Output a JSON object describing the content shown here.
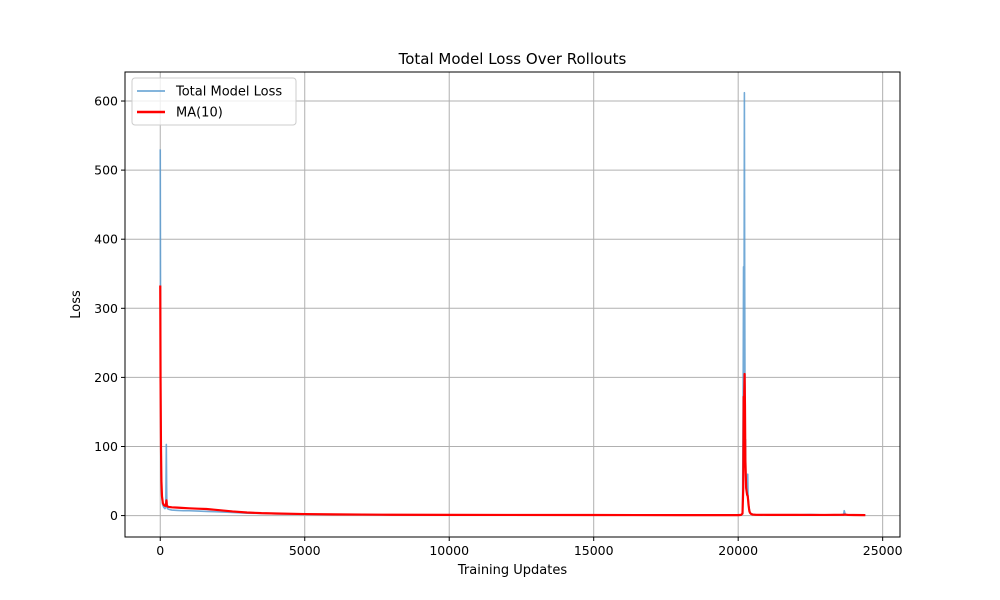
{
  "chart_data": {
    "type": "line",
    "title": "Total Model Loss Over Rollouts",
    "xlabel": "Training Updates",
    "ylabel": "Loss",
    "xlim": [
      -1220,
      25600
    ],
    "ylim": [
      -31,
      642
    ],
    "xticks": [
      0,
      5000,
      10000,
      15000,
      20000,
      25000
    ],
    "xtick_labels": [
      "0",
      "5000",
      "10000",
      "15000",
      "20000",
      "25000"
    ],
    "yticks": [
      0,
      100,
      200,
      300,
      400,
      500,
      600
    ],
    "ytick_labels": [
      "0",
      "100",
      "200",
      "300",
      "400",
      "500",
      "600"
    ],
    "grid": true,
    "legend_position": "top-left",
    "series": [
      {
        "name": "Total Model Loss",
        "color": "#5b9bd0",
        "x": [
          0,
          8,
          18,
          30,
          50,
          80,
          120,
          160,
          190,
          200,
          210,
          222,
          230,
          250,
          300,
          400,
          600,
          800,
          1000,
          1300,
          1600,
          2000,
          2500,
          3000,
          3500,
          4000,
          5000,
          6000,
          7000,
          8000,
          10000,
          12000,
          15000,
          18000,
          20000,
          20100,
          20150,
          20170,
          20185,
          20195,
          20205,
          20215,
          20225,
          20235,
          20245,
          20255,
          20265,
          20275,
          20290,
          20310,
          20330,
          20345,
          20360,
          20375,
          20390,
          20410,
          20440,
          20500,
          20600,
          21000,
          21500,
          22000,
          22500,
          23000,
          23500,
          23650,
          23670,
          23690,
          23710,
          23800,
          24000,
          24200,
          24400
        ],
        "y": [
          530,
          350,
          120,
          60,
          30,
          16,
          12,
          10,
          12,
          50,
          103,
          40,
          14,
          10,
          9,
          8,
          7.5,
          7,
          7,
          6.5,
          6,
          5.5,
          4.5,
          3.5,
          3,
          2.5,
          2,
          1.6,
          1.3,
          1.1,
          0.9,
          0.8,
          0.7,
          0.6,
          0.6,
          0.8,
          2,
          150,
          360,
          120,
          320,
          612,
          350,
          200,
          90,
          110,
          60,
          40,
          35,
          30,
          60,
          25,
          18,
          12,
          8,
          5,
          3,
          2,
          1.2,
          1,
          1.2,
          0.9,
          1.5,
          1,
          0.8,
          2,
          7,
          4,
          1,
          0.9,
          0.8,
          0.7,
          0.7
        ]
      },
      {
        "name": "MA(10)",
        "color": "#ff0000",
        "x": [
          0,
          10,
          25,
          40,
          60,
          90,
          130,
          170,
          200,
          215,
          230,
          260,
          300,
          400,
          600,
          800,
          1000,
          1300,
          1600,
          2000,
          2500,
          3000,
          3500,
          4000,
          5000,
          6000,
          7000,
          8000,
          10000,
          12000,
          15000,
          18000,
          20000,
          20100,
          20150,
          20175,
          20190,
          20200,
          20210,
          20222,
          20235,
          20248,
          20262,
          20276,
          20292,
          20310,
          20330,
          20345,
          20360,
          20375,
          20390,
          20410,
          20440,
          20500,
          20600,
          21000,
          22000,
          23000,
          23650,
          23700,
          23800,
          24000,
          24400
        ],
        "y": [
          333,
          200,
          100,
          50,
          28,
          18,
          15,
          14,
          16,
          22,
          14,
          13,
          12.5,
          12,
          11.5,
          11,
          10.5,
          10,
          9.5,
          8,
          6,
          4.5,
          3.5,
          3,
          2.2,
          1.8,
          1.5,
          1.2,
          1,
          0.9,
          0.8,
          0.7,
          0.7,
          1,
          3,
          40,
          172,
          110,
          180,
          205,
          160,
          80,
          60,
          40,
          35,
          30,
          28,
          22,
          15,
          10,
          6,
          4,
          2.5,
          1.5,
          1.2,
          1,
          1,
          0.9,
          1.2,
          1.5,
          0.9,
          0.8,
          0.7
        ]
      }
    ]
  }
}
